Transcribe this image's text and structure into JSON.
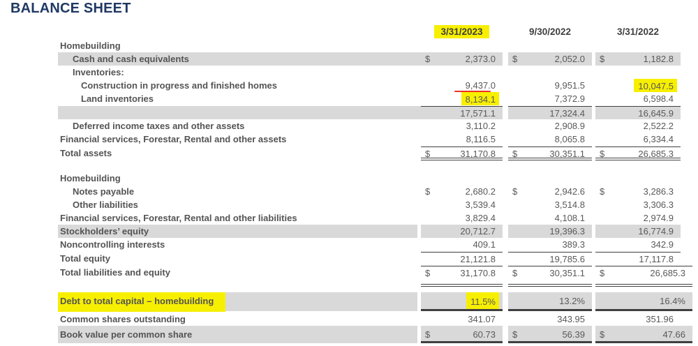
{
  "title": "BALANCE SHEET",
  "columns": [
    {
      "label": "3/31/2023",
      "highlight": true
    },
    {
      "label": "9/30/2022",
      "highlight": false
    },
    {
      "label": "3/31/2022",
      "highlight": false
    }
  ],
  "highlight_color": "#f7ef00",
  "shading_color": "#d9d9d9",
  "annotation_color": "#ee3124",
  "rows": [
    {
      "id": "homebuilding-assets",
      "label": "Homebuilding",
      "indent": 0
    },
    {
      "id": "cash-and-cash-equivalents",
      "label": "Cash and cash equivalents",
      "indent": 1,
      "shaded": true,
      "cells": [
        {
          "dollar": "$",
          "value": "2,373.0"
        },
        {
          "dollar": "$",
          "value": "2,052.0"
        },
        {
          "dollar": "$",
          "value": "1,182.8"
        }
      ]
    },
    {
      "id": "inventories-heading",
      "label": "Inventories:",
      "indent": 1
    },
    {
      "id": "construction-in-progress",
      "label": "Construction in progress and finished homes",
      "indent": 2,
      "cells": [
        {
          "value": "9,437.0",
          "red_underline": true
        },
        {
          "value": "9,951.5"
        },
        {
          "value": "10,047.5",
          "highlight": true
        }
      ]
    },
    {
      "id": "land-inventories",
      "label": "Land inventories",
      "indent": 2,
      "cells": [
        {
          "value": "8,134.1",
          "highlight": true
        },
        {
          "value": "7,372.9"
        },
        {
          "value": "6,598.4"
        }
      ]
    },
    {
      "id": "total-inventories",
      "label": "",
      "indent": 1,
      "shaded": true,
      "rule_top": true,
      "cells": [
        {
          "value": "17,571.1"
        },
        {
          "value": "17,324.4"
        },
        {
          "value": "16,645.9"
        }
      ]
    },
    {
      "id": "deferred-income-taxes",
      "label": "Deferred income taxes and other assets",
      "indent": 1,
      "cells": [
        {
          "value": "3,110.2"
        },
        {
          "value": "2,908.9"
        },
        {
          "value": "2,522.2"
        }
      ]
    },
    {
      "id": "financial-services-assets",
      "label": "Financial services, Forestar, Rental and other assets",
      "indent": 0,
      "cells": [
        {
          "value": "8,116.5"
        },
        {
          "value": "8,065.8"
        },
        {
          "value": "6,334.4"
        }
      ]
    },
    {
      "id": "total-assets",
      "label": "Total assets",
      "indent": 0,
      "rule_top": true,
      "rule_double_bottom": true,
      "cells": [
        {
          "dollar": "$",
          "value": "31,170.8"
        },
        {
          "dollar": "$",
          "value": "30,351.1"
        },
        {
          "dollar": "$",
          "value": "26,685.3"
        }
      ]
    },
    {
      "id": "homebuilding-liabilities",
      "label": "Homebuilding",
      "indent": 0
    },
    {
      "id": "notes-payable",
      "label": "Notes payable",
      "indent": 1,
      "cells": [
        {
          "dollar": "$",
          "value": "2,680.2"
        },
        {
          "dollar": "$",
          "value": "2,942.6"
        },
        {
          "dollar": "$",
          "value": "3,286.3"
        }
      ]
    },
    {
      "id": "other-liabilities",
      "label": "Other liabilities",
      "indent": 1,
      "cells": [
        {
          "value": "3,539.4"
        },
        {
          "value": "3,514.8"
        },
        {
          "value": "3,306.3"
        }
      ]
    },
    {
      "id": "financial-services-liabilities",
      "label": "Financial services, Forestar, Rental and other liabilities",
      "indent": 0,
      "cells": [
        {
          "value": "3,829.4"
        },
        {
          "value": "4,108.1"
        },
        {
          "value": "2,974.9"
        }
      ]
    },
    {
      "id": "stockholders-equity",
      "label": "Stockholders’ equity",
      "indent": 0,
      "shaded": true,
      "cells": [
        {
          "value": "20,712.7"
        },
        {
          "value": "19,396.3"
        },
        {
          "value": "16,774.9"
        }
      ]
    },
    {
      "id": "noncontrolling-interests",
      "label": "Noncontrolling interests",
      "indent": 0,
      "cells": [
        {
          "value": "409.1"
        },
        {
          "value": "389.3"
        },
        {
          "value": "342.9"
        }
      ]
    },
    {
      "id": "total-equity",
      "label": "Total equity",
      "indent": 0,
      "rule_top": true,
      "cells": [
        {
          "value": "21,121.8"
        },
        {
          "value": "19,785.6"
        },
        {
          "value": "17,117.8"
        }
      ]
    },
    {
      "id": "total-liabilities-and-equity",
      "label": "Total liabilities and equity",
      "indent": 0,
      "rule_top": true,
      "rule_double_bottom": true,
      "wide": true,
      "cells": [
        {
          "dollar": "$",
          "value": "31,170.8"
        },
        {
          "dollar": "$",
          "value": "30,351.1"
        },
        {
          "dollar": "$",
          "value": "26,685.3"
        }
      ]
    },
    {
      "id": "debt-to-total-capital",
      "label": "Debt to total capital – homebuilding",
      "indent": 0,
      "label_highlight": true,
      "shaded": true,
      "wide": true,
      "rule_thick_bottom": true,
      "cells": [
        {
          "value": "11.5%",
          "highlight": true
        },
        {
          "value": "13.2%"
        },
        {
          "value": "16.4%"
        }
      ]
    },
    {
      "id": "common-shares-outstanding",
      "label": "Common shares outstanding",
      "indent": 0,
      "cells": [
        {
          "value": "341.07"
        },
        {
          "value": "343.95"
        },
        {
          "value": "351.96"
        }
      ]
    },
    {
      "id": "book-value-per-common-share",
      "label": "Book value per common share",
      "indent": 0,
      "shaded": true,
      "wide": true,
      "rule_thick_bottom": true,
      "cells": [
        {
          "dollar": "$",
          "value": "60.73"
        },
        {
          "dollar": "$",
          "value": "56.39"
        },
        {
          "dollar": "$",
          "value": "47.66"
        }
      ]
    }
  ]
}
